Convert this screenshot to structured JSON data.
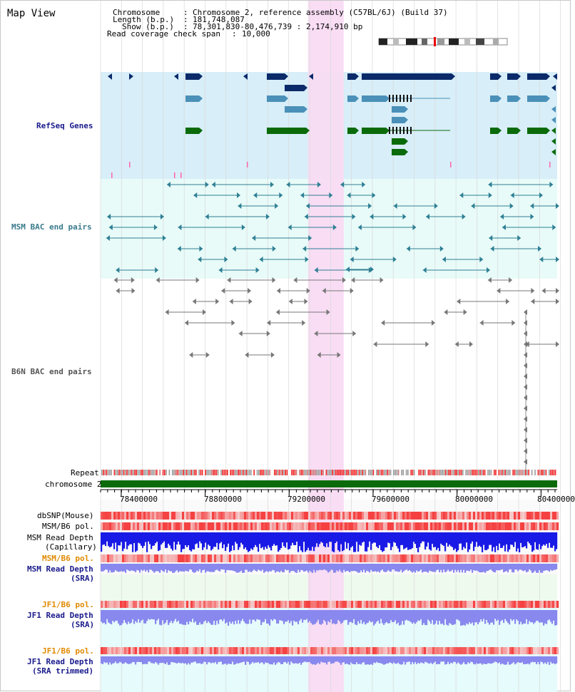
{
  "page": {
    "title": "Map View"
  },
  "header": {
    "chromosome_label": "Chromosome",
    "chromosome_value": "Chromosome 2, reference assembly (C57BL/6J) (Build 37)",
    "length_label": "Length (b.p.)",
    "length_value": "181,748,087",
    "show_label": "Show (b.p.)",
    "show_value": "78,301,830-80,476,739 : 2,174,910 bp",
    "coverage_label": "Read coverage check span",
    "coverage_value": "10,000",
    "sep": ":"
  },
  "tracks": {
    "refseq": "RefSeq Genes",
    "msm_bac": "MSM BAC end pairs",
    "b6n_bac": "B6N BAC end pairs",
    "repeat": "Repeat",
    "chromosome": "chromosome 2",
    "dbsnp": "dbSNP(Mouse)",
    "msm_b6_pol_1": "MSM/B6 pol.",
    "msm_read_depth_cap_1": "MSM Read Depth",
    "msm_read_depth_cap_2": "(Capillary)",
    "msm_b6_pol_2": "MSM/B6 pol.",
    "msm_read_depth_sra_1": "MSM Read Depth",
    "msm_read_depth_sra_2": "(SRA)",
    "jf1_b6_pol_1": "JF1/B6 pol.",
    "jf1_read_depth_sra_1": "JF1 Read Depth",
    "jf1_read_depth_sra_2": "(SRA)",
    "jf1_b6_pol_2": "JF1/B6 pol.",
    "jf1_read_depth_trim_1": "JF1 Read Depth",
    "jf1_read_depth_trim_2": "(SRA trimmed)"
  },
  "axis": {
    "ticks": [
      "78400000",
      "78800000",
      "79200000",
      "79600000",
      "80000000",
      "80400000"
    ],
    "start": 78301830,
    "end": 80476739
  },
  "highlight_region": {
    "start": 79290000,
    "end": 79460000
  },
  "colors": {
    "refseq_bg": "#d8eef8",
    "bac_bg": "#e8fbf8",
    "highlight": "#f9dbf3",
    "gene_navy": "#0b2a6a",
    "gene_steel": "#4a90b8",
    "gene_green": "#0b6b0b",
    "bac_teal": "#2e7f94",
    "bac_gray": "#777777",
    "chromosome": "#0b6b0b",
    "depth_blue": "#1a1ae6",
    "depth_light": "#8888ee"
  }
}
